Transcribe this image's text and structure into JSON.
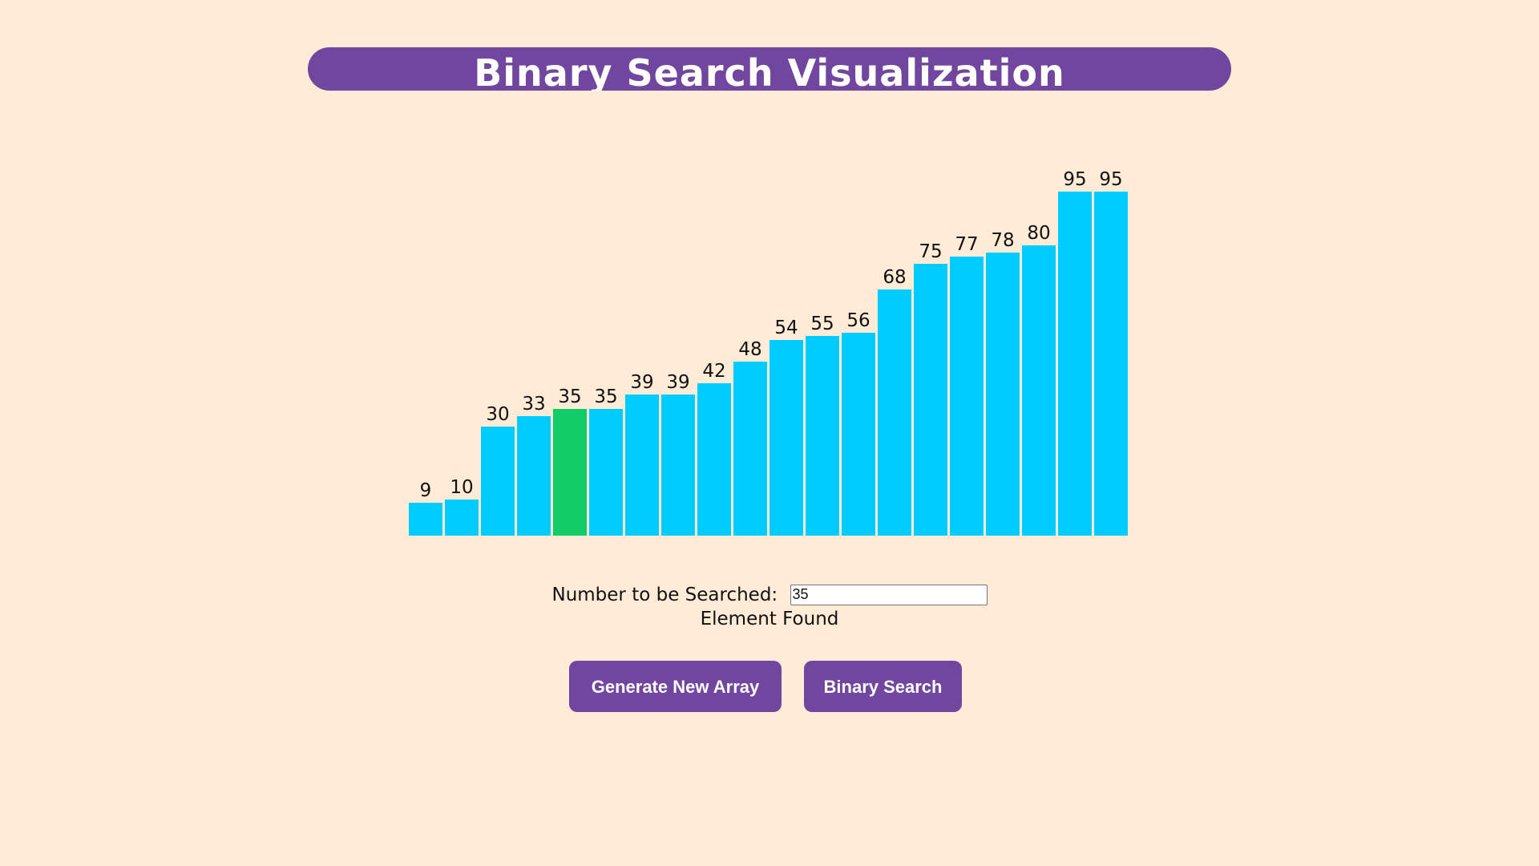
{
  "header": {
    "title": "Binary Search Visualization"
  },
  "array": {
    "values": [
      9,
      10,
      30,
      33,
      35,
      35,
      39,
      39,
      42,
      48,
      54,
      55,
      56,
      68,
      75,
      77,
      78,
      80,
      95,
      95
    ],
    "found_index": 4,
    "default_color": "#00CCFF",
    "found_color": "#12CC66"
  },
  "search": {
    "label": "Number to be Searched:",
    "value": "35"
  },
  "status": {
    "text": "Element Found"
  },
  "buttons": {
    "generate_label": "Generate New Array",
    "search_label": "Binary Search"
  },
  "colors": {
    "background": "#FFEBD6",
    "accent": "#70469F"
  }
}
